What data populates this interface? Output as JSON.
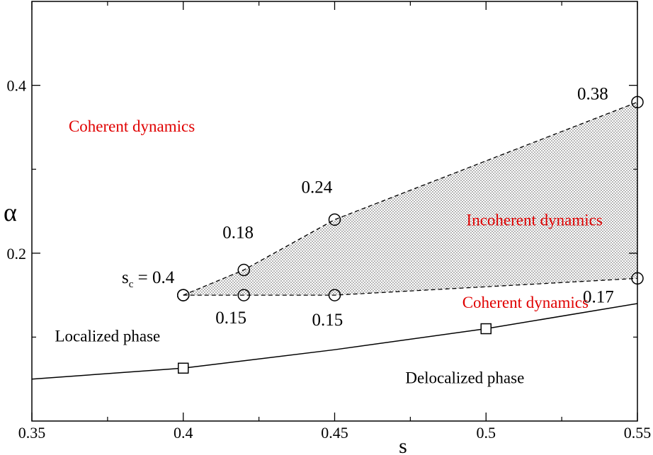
{
  "chart_data": {
    "type": "scatter",
    "xlabel": "s",
    "ylabel": "α",
    "xlim": [
      0.35,
      0.55
    ],
    "ylim": [
      0.0,
      0.5
    ],
    "x_ticks": [
      {
        "value": 0.35,
        "label": "0.35"
      },
      {
        "value": 0.4,
        "label": "0.4"
      },
      {
        "value": 0.45,
        "label": "0.45"
      },
      {
        "value": 0.5,
        "label": "0.5"
      },
      {
        "value": 0.55,
        "label": "0.55"
      }
    ],
    "x_minor_ticks": [
      0.375,
      0.425,
      0.475,
      0.525
    ],
    "y_ticks": [
      {
        "value": 0.2,
        "label": "0.2"
      },
      {
        "value": 0.4,
        "label": "0.4"
      }
    ],
    "y_minor_ticks": [
      0.1,
      0.3
    ],
    "grid": false,
    "series": [
      {
        "marker": "circle",
        "line": "dashed",
        "role": "upper boundary",
        "points": [
          {
            "x": 0.4,
            "y": 0.15
          },
          {
            "x": 0.42,
            "y": 0.18,
            "label": "0.18"
          },
          {
            "x": 0.45,
            "y": 0.24,
            "label": "0.24"
          },
          {
            "x": 0.55,
            "y": 0.38,
            "label": "0.38"
          }
        ]
      },
      {
        "marker": "circle",
        "line": "dashed",
        "role": "lower boundary",
        "points": [
          {
            "x": 0.4,
            "y": 0.15
          },
          {
            "x": 0.42,
            "y": 0.15,
            "label": "0.15"
          },
          {
            "x": 0.45,
            "y": 0.15,
            "label": "0.15"
          },
          {
            "x": 0.55,
            "y": 0.17,
            "label": "0.17"
          }
        ]
      },
      {
        "marker": "square",
        "line": "solid",
        "role": "localization transition",
        "line_points": [
          {
            "x": 0.35,
            "y": 0.05
          },
          {
            "x": 0.4,
            "y": 0.063
          },
          {
            "x": 0.45,
            "y": 0.085
          },
          {
            "x": 0.5,
            "y": 0.11
          },
          {
            "x": 0.55,
            "y": 0.14
          }
        ],
        "markers": [
          {
            "x": 0.4,
            "y": 0.063
          },
          {
            "x": 0.5,
            "y": 0.11
          }
        ]
      }
    ],
    "shaded_region": "between upper and lower boundary",
    "annotations": [
      {
        "text": "Coherent dynamics",
        "x": 0.383,
        "y": 0.345,
        "color": "#e00000"
      },
      {
        "text": "Incoherent dynamics",
        "x": 0.516,
        "y": 0.233,
        "color": "#e00000"
      },
      {
        "text": "Coherent dynamics",
        "x": 0.513,
        "y": 0.135,
        "color": "#e00000"
      },
      {
        "text": "Localized phase",
        "x": 0.375,
        "y": 0.095,
        "color": "#000000"
      },
      {
        "text": "Delocalized phase",
        "x": 0.493,
        "y": 0.045,
        "color": "#000000"
      }
    ],
    "sc_label": {
      "symbol": "s",
      "subscript": "c",
      "text": " = 0.4"
    }
  }
}
